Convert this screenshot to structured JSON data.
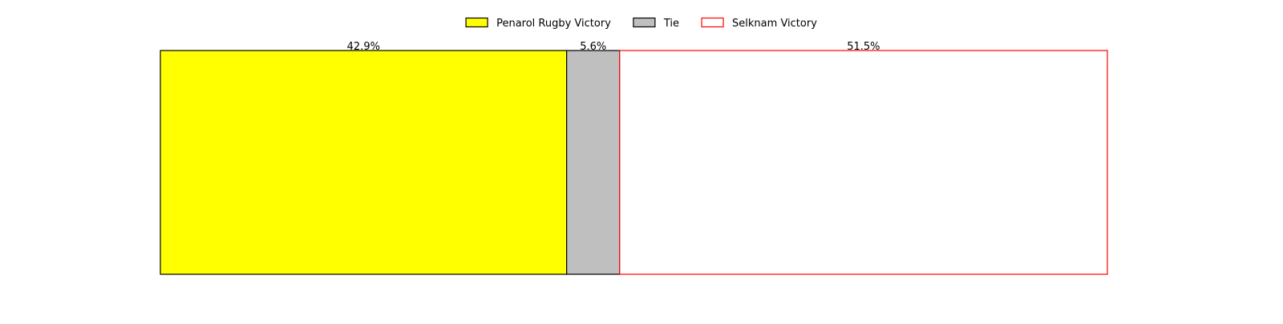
{
  "chart_data": {
    "type": "bar",
    "orientation": "horizontal",
    "stacked": true,
    "normalized_to_percent": true,
    "title": "",
    "xlabel": "",
    "ylabel": "",
    "axes_visible": false,
    "grid": false,
    "xlim": [
      0,
      100
    ],
    "legend_placement": "top-center",
    "series": [
      {
        "name": "Penarol Rugby Victory",
        "value": 42.9,
        "label": "42.9%",
        "fill": "#ffff00",
        "stroke": "#000000"
      },
      {
        "name": "Tie",
        "value": 5.6,
        "label": "5.6%",
        "fill": "#bfbfbf",
        "stroke": "#000000"
      },
      {
        "name": "Selknam Victory",
        "value": 51.5,
        "label": "51.5%",
        "fill": "#ffffff",
        "stroke": "#ff0000"
      }
    ]
  }
}
